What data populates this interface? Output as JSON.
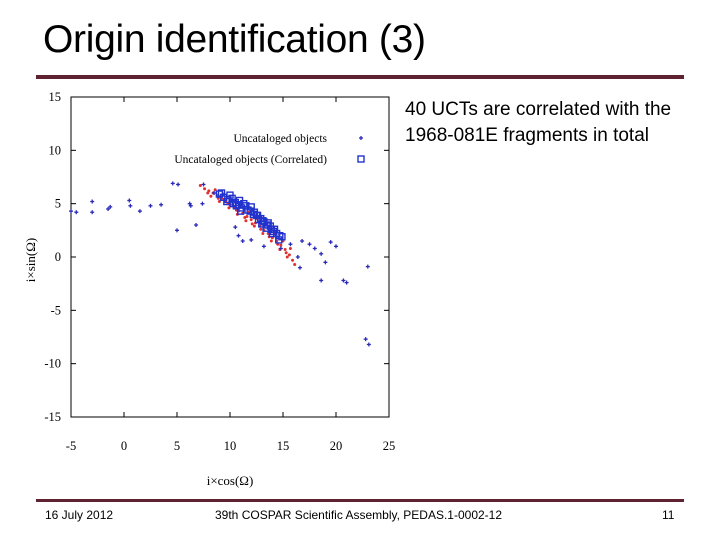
{
  "slide": {
    "title": "Origin identification (3)",
    "body_text": "40 UCTs are correlated with the 1968-081E fragments in total",
    "footer": {
      "date": "16 July 2012",
      "center": "39th COSPAR Scientific Assembly, PEDAS.1-0002-12",
      "page": "11"
    },
    "accent_color": "#5e2231"
  },
  "chart_data": {
    "type": "scatter",
    "xlabel": "i×cos(Ω)",
    "ylabel": "i×sin(Ω)",
    "xlim": [
      -5,
      25
    ],
    "ylim": [
      -15,
      15
    ],
    "xticks": [
      "-5",
      "0",
      "5",
      "10",
      "15",
      "20",
      "25"
    ],
    "yticks": [
      "15",
      "10",
      "5",
      "0",
      "-5",
      "-10",
      "-15"
    ],
    "grid": false,
    "legend_position": "top-right",
    "series": [
      {
        "name": "Uncataloged objects",
        "marker": "plus",
        "color": "#2a2ab8",
        "points": [
          [
            -5,
            4.3
          ],
          [
            -4.5,
            4.2
          ],
          [
            -3,
            4.2
          ],
          [
            -3,
            5.2
          ],
          [
            -1.5,
            4.5
          ],
          [
            -1.3,
            4.7
          ],
          [
            0.5,
            5.3
          ],
          [
            0.6,
            4.8
          ],
          [
            1.5,
            4.3
          ],
          [
            2.5,
            4.8
          ],
          [
            3.5,
            4.9
          ],
          [
            4.6,
            6.9
          ],
          [
            5.1,
            6.8
          ],
          [
            6.2,
            5.0
          ],
          [
            6.3,
            4.8
          ],
          [
            7.4,
            5.0
          ],
          [
            6.8,
            3.0
          ],
          [
            5.0,
            2.5
          ],
          [
            7.5,
            6.8
          ],
          [
            8.5,
            6.0
          ],
          [
            10.5,
            2.8
          ],
          [
            10.8,
            2.0
          ],
          [
            11.2,
            1.5
          ],
          [
            12.0,
            1.6
          ],
          [
            13.2,
            1.0
          ],
          [
            14.8,
            0.8
          ],
          [
            15.7,
            1.2
          ],
          [
            16.4,
            0.0
          ],
          [
            16.8,
            1.5
          ],
          [
            17.5,
            1.2
          ],
          [
            18.0,
            0.8
          ],
          [
            18.6,
            0.3
          ],
          [
            19.0,
            -0.5
          ],
          [
            19.5,
            1.4
          ],
          [
            20.0,
            1.0
          ],
          [
            16.6,
            -1.0
          ],
          [
            18.6,
            -2.2
          ],
          [
            20.7,
            -2.2
          ],
          [
            21.0,
            -2.4
          ],
          [
            23.0,
            -0.9
          ],
          [
            22.8,
            -7.7
          ],
          [
            23.1,
            -8.2
          ]
        ]
      },
      {
        "name": "Uncataloged objects (Correlated)",
        "marker": "square",
        "color": "#2233cc",
        "points": [
          [
            9.0,
            5.9
          ],
          [
            9.4,
            5.6
          ],
          [
            9.8,
            5.4
          ],
          [
            10.2,
            5.5
          ],
          [
            10.5,
            5.1
          ],
          [
            10.8,
            4.9
          ],
          [
            11.1,
            4.6
          ],
          [
            11.5,
            4.8
          ],
          [
            11.9,
            4.3
          ],
          [
            12.2,
            4.0
          ],
          [
            12.5,
            3.9
          ],
          [
            12.9,
            3.6
          ],
          [
            13.2,
            3.3
          ],
          [
            13.5,
            3.0
          ],
          [
            13.8,
            2.9
          ],
          [
            14.1,
            2.4
          ],
          [
            14.4,
            2.2
          ],
          [
            14.7,
            2.0
          ],
          [
            10.0,
            5.8
          ],
          [
            11.3,
            5.0
          ],
          [
            12.7,
            3.5
          ],
          [
            13.9,
            2.6
          ],
          [
            9.7,
            5.2
          ],
          [
            11.7,
            4.4
          ],
          [
            13.0,
            3.1
          ],
          [
            14.2,
            2.6
          ],
          [
            12.0,
            4.7
          ],
          [
            10.6,
            4.8
          ],
          [
            13.4,
            2.7
          ],
          [
            14.6,
            1.6
          ],
          [
            9.2,
            6.0
          ],
          [
            10.9,
            5.3
          ],
          [
            12.3,
            4.2
          ],
          [
            13.6,
            3.2
          ],
          [
            14.9,
            1.9
          ],
          [
            11.0,
            4.3
          ],
          [
            12.6,
            3.9
          ],
          [
            14.0,
            2.2
          ],
          [
            10.3,
            5.0
          ],
          [
            13.1,
            3.4
          ]
        ]
      },
      {
        "name": "",
        "marker": "dot",
        "color": "#e03030",
        "points": [
          [
            7.2,
            6.7
          ],
          [
            7.6,
            6.4
          ],
          [
            8.0,
            6.2
          ],
          [
            8.4,
            6.0
          ],
          [
            8.8,
            5.8
          ],
          [
            9.2,
            5.5
          ],
          [
            9.6,
            5.2
          ],
          [
            10.0,
            4.9
          ],
          [
            10.4,
            4.6
          ],
          [
            10.8,
            4.3
          ],
          [
            11.2,
            4.1
          ],
          [
            11.6,
            3.8
          ],
          [
            12.0,
            3.5
          ],
          [
            12.4,
            3.2
          ],
          [
            12.8,
            2.9
          ],
          [
            13.2,
            2.5
          ],
          [
            13.6,
            2.2
          ],
          [
            14.0,
            1.8
          ],
          [
            14.4,
            1.5
          ],
          [
            14.8,
            1.1
          ],
          [
            15.2,
            0.7
          ],
          [
            15.6,
            0.2
          ],
          [
            15.9,
            -0.3
          ],
          [
            16.1,
            -0.7
          ],
          [
            8.2,
            5.7
          ],
          [
            9.0,
            5.2
          ],
          [
            9.9,
            4.6
          ],
          [
            10.7,
            4.0
          ],
          [
            11.5,
            3.4
          ],
          [
            12.3,
            2.9
          ],
          [
            13.1,
            2.2
          ],
          [
            13.9,
            1.5
          ],
          [
            14.7,
            0.7
          ],
          [
            15.4,
            0.0
          ],
          [
            8.6,
            6.3
          ],
          [
            9.4,
            5.9
          ],
          [
            10.2,
            5.3
          ],
          [
            11.0,
            4.7
          ],
          [
            11.8,
            4.2
          ],
          [
            12.6,
            3.6
          ],
          [
            13.4,
            3.0
          ],
          [
            14.2,
            2.3
          ],
          [
            15.0,
            1.5
          ],
          [
            15.7,
            0.8
          ],
          [
            7.9,
            6.0
          ],
          [
            8.9,
            5.5
          ],
          [
            10.6,
            4.4
          ],
          [
            12.1,
            3.1
          ],
          [
            13.7,
            1.9
          ],
          [
            15.3,
            0.4
          ],
          [
            9.8,
            5.0
          ],
          [
            11.4,
            3.7
          ],
          [
            12.9,
            2.6
          ],
          [
            14.5,
            1.2
          ]
        ]
      }
    ]
  }
}
